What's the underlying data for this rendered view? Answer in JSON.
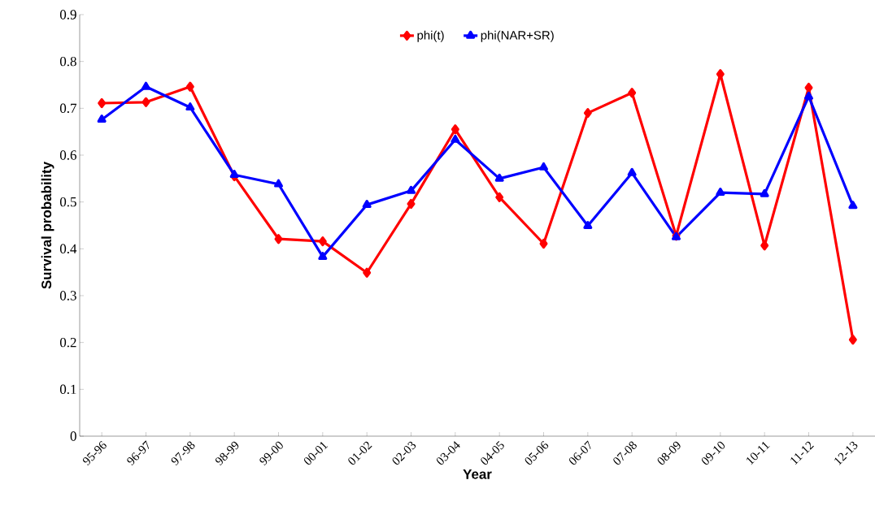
{
  "chart_data": {
    "type": "line",
    "xlabel": "Year",
    "ylabel": "Survival probability",
    "categories": [
      "95-96",
      "96-97",
      "97-98",
      "98-99",
      "99-00",
      "00-01",
      "01-02",
      "02-03",
      "03-04",
      "04-05",
      "05-06",
      "06-07",
      "07-08",
      "08-09",
      "09-10",
      "10-11",
      "11-12",
      "12-13"
    ],
    "series": [
      {
        "name": "phi(t)",
        "color": "#ff0000",
        "marker": "diamond",
        "values": [
          0.711,
          0.713,
          0.746,
          0.555,
          0.421,
          0.416,
          0.349,
          0.496,
          0.655,
          0.51,
          0.411,
          0.69,
          0.733,
          0.428,
          0.773,
          0.407,
          0.744,
          0.206
        ]
      },
      {
        "name": "phi(NAR+SR)",
        "color": "#0000ff",
        "marker": "triangle",
        "values": [
          0.676,
          0.746,
          0.702,
          0.558,
          0.538,
          0.383,
          0.494,
          0.524,
          0.633,
          0.55,
          0.574,
          0.449,
          0.562,
          0.425,
          0.52,
          0.517,
          0.725,
          0.492
        ]
      }
    ],
    "ylim": [
      0,
      0.9
    ],
    "yticks": [
      0,
      0.1,
      0.2,
      0.3,
      0.4,
      0.5,
      0.6,
      0.7,
      0.8,
      0.9
    ],
    "grid": false,
    "legend": "top",
    "line_style": "solid"
  }
}
